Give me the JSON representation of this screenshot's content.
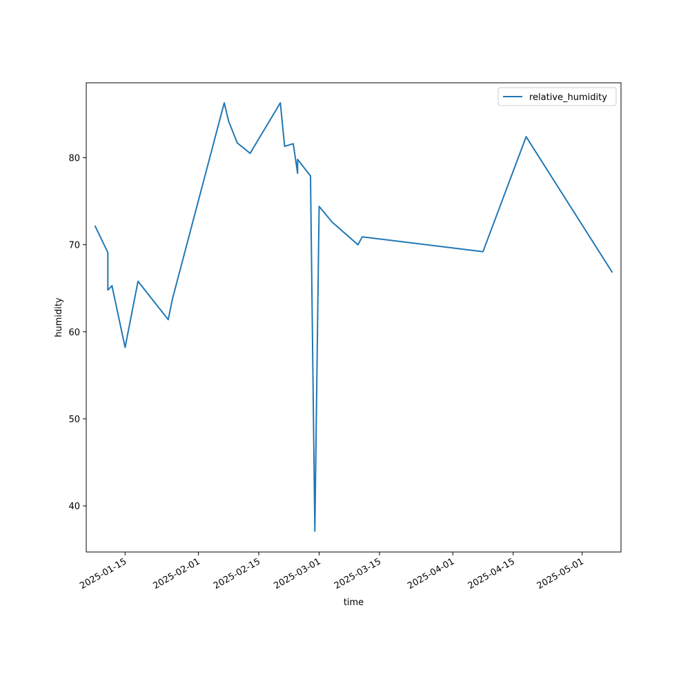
{
  "chart_data": {
    "type": "line",
    "title": "",
    "xlabel": "time",
    "ylabel": "humidity",
    "x_type": "date",
    "xlim": [
      "2025-01-06",
      "2025-05-10"
    ],
    "ylim": [
      34.7,
      88.6
    ],
    "yticks": [
      40,
      50,
      60,
      70,
      80
    ],
    "xticks": [
      "2025-01-15",
      "2025-02-01",
      "2025-02-15",
      "2025-03-01",
      "2025-03-15",
      "2025-04-01",
      "2025-04-15",
      "2025-05-01"
    ],
    "grid": false,
    "legend_position": "upper right",
    "line_color": "#1f77b4",
    "series": [
      {
        "name": "relative_humidity",
        "x": [
          "2025-01-08",
          "2025-01-11",
          "2025-01-11",
          "2025-01-12",
          "2025-01-12",
          "2025-01-15",
          "2025-01-18",
          "2025-01-25",
          "2025-01-26",
          "2025-02-07",
          "2025-02-08",
          "2025-02-10",
          "2025-02-13",
          "2025-02-20",
          "2025-02-21",
          "2025-02-23",
          "2025-02-24",
          "2025-02-24",
          "2025-02-27",
          "2025-02-28",
          "2025-03-01",
          "2025-03-04",
          "2025-03-10",
          "2025-03-11",
          "2025-04-08",
          "2025-04-18",
          "2025-05-08"
        ],
        "y": [
          72.2,
          69.1,
          64.8,
          65.3,
          65.2,
          58.2,
          65.8,
          61.4,
          63.8,
          86.3,
          84.2,
          81.7,
          80.5,
          86.3,
          81.3,
          81.6,
          78.2,
          79.8,
          77.9,
          37.1,
          74.4,
          72.6,
          70.0,
          70.9,
          69.2,
          82.4,
          66.8
        ]
      }
    ]
  }
}
